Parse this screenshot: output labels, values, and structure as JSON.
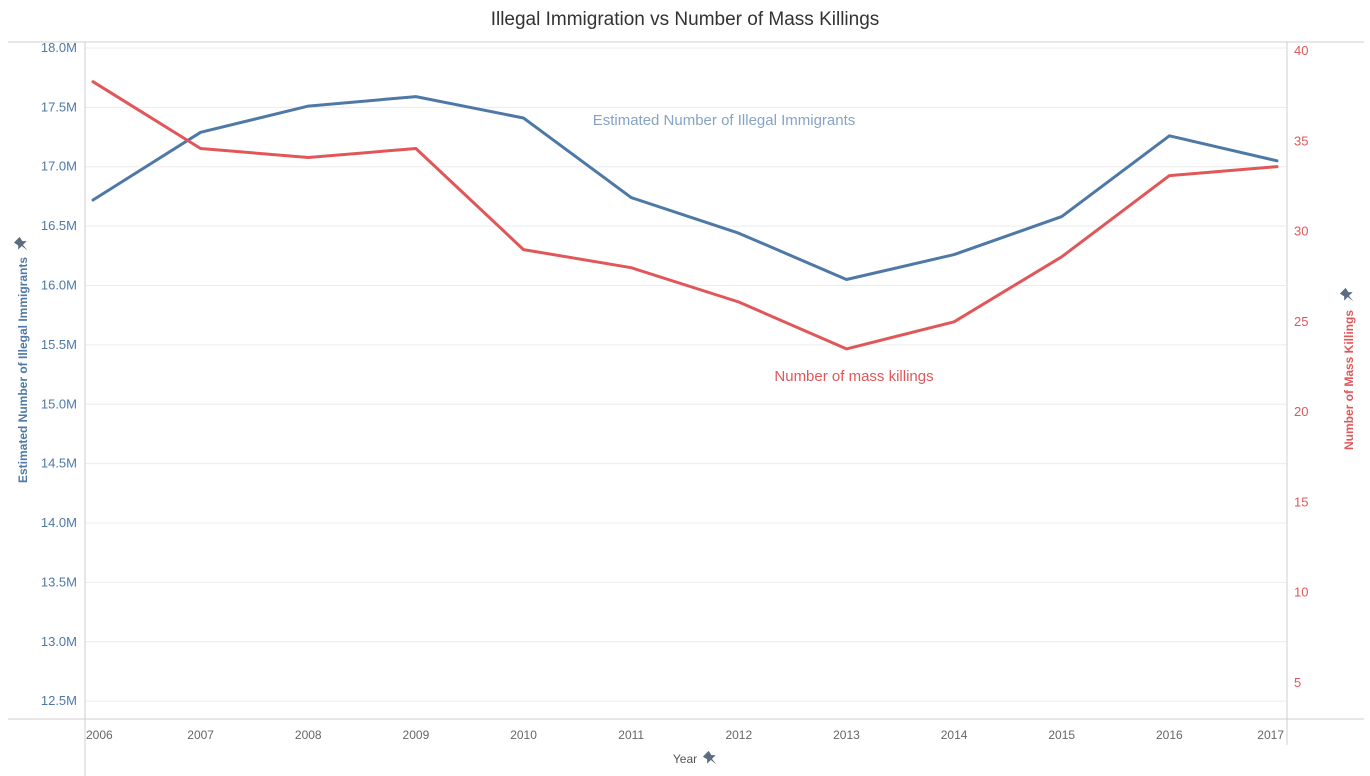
{
  "chart_data": {
    "type": "line",
    "title": "Illegal Immigration vs Number of Mass Killings",
    "xlabel": "Year",
    "ylabel_left": "Estimated Number of Illegal Immigrants",
    "ylabel_right": "Number of Mass Killings",
    "x": [
      "2006",
      "2007",
      "2008",
      "2009",
      "2010",
      "2011",
      "2012",
      "2013",
      "2014",
      "2015",
      "2016",
      "2017"
    ],
    "series": [
      {
        "name": "Estimated Number of Illegal Immigrants",
        "axis": "left",
        "color": "#4e79a7",
        "values": [
          16.72,
          17.29,
          17.51,
          17.59,
          17.41,
          16.74,
          16.44,
          16.05,
          16.26,
          16.58,
          17.26,
          17.05
        ]
      },
      {
        "name": "Number of mass killings",
        "axis": "right",
        "color": "#e15759",
        "values": [
          38.3,
          34.6,
          34.1,
          34.6,
          29.0,
          28.0,
          26.1,
          23.5,
          25.0,
          28.6,
          33.1,
          33.6
        ]
      }
    ],
    "ylim_left": [
      12.35,
      18.05
    ],
    "ylim_right": [
      3.0,
      40.5
    ],
    "yticks_left": [
      12.5,
      13.0,
      13.5,
      14.0,
      14.5,
      15.0,
      15.5,
      16.0,
      16.5,
      17.0,
      17.5,
      18.0
    ],
    "yticks_left_labels": [
      "12.5M",
      "13.0M",
      "13.5M",
      "14.0M",
      "14.5M",
      "15.0M",
      "15.5M",
      "16.0M",
      "16.5M",
      "17.0M",
      "17.5M",
      "18.0M"
    ],
    "yticks_right": [
      5,
      10,
      15,
      20,
      25,
      30,
      35,
      40
    ],
    "yticks_right_labels": [
      "5",
      "10",
      "15",
      "20",
      "25",
      "30",
      "35",
      "40"
    ],
    "annotations": {
      "left_series_label": "Estimated Number of Illegal Immigrants",
      "right_series_label": "Number of mass killings"
    },
    "grid": true,
    "colors": {
      "left": "#4e79a7",
      "right": "#e15759"
    },
    "icons": [
      "pin-icon"
    ]
  }
}
